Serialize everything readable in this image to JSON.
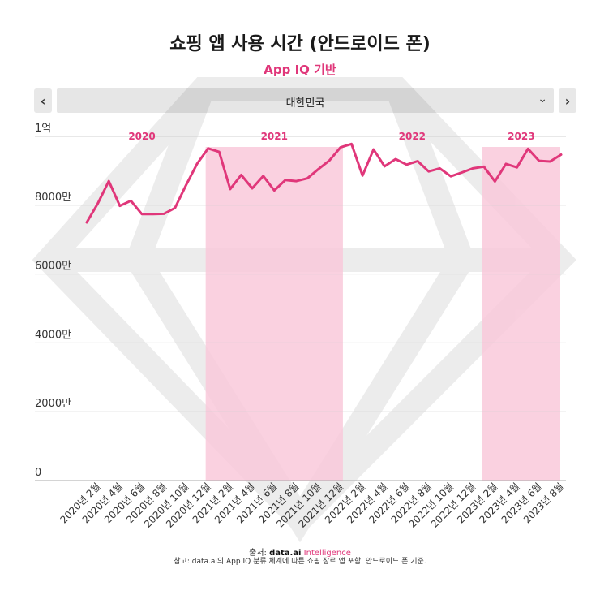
{
  "header": {
    "title": "쇼핑 앱 사용 시간 (안드로이드 폰)",
    "subtitle": "App IQ 기반"
  },
  "controls": {
    "prev_label": "‹",
    "next_label": "›",
    "country_selected": "대한민국",
    "chevron": "⌄"
  },
  "footer": {
    "source_prefix": "출처: ",
    "source_brand": "data.ai",
    "source_brand_suffix": " Intelligence",
    "note": "참고: data.ai의 App IQ 분류 체계에 따른 쇼핑 장르 앱 포함. 안드로이드 폰 기준."
  },
  "colors": {
    "line": "#e0377a",
    "band": "#f9c9da",
    "year_label": "#e0377a"
  },
  "chart_data": {
    "type": "line",
    "ylim": [
      0,
      100000000
    ],
    "y_ticks": [
      {
        "value": 0,
        "label": "0"
      },
      {
        "value": 20000000,
        "label": "2000만"
      },
      {
        "value": 40000000,
        "label": "4000만"
      },
      {
        "value": 60000000,
        "label": "6000만"
      },
      {
        "value": 80000000,
        "label": "8000만"
      },
      {
        "value": 100000000,
        "label": "1억"
      }
    ],
    "x_labels": [
      "2020년 2월",
      "2020년 4월",
      "2020년 6월",
      "2020년 8월",
      "2020년 10월",
      "2020년 12월",
      "2021년 2월",
      "2021년 4월",
      "2021년 6월",
      "2021년 8월",
      "2021년 10월",
      "2021년 12월",
      "2022년 2월",
      "2022년 4월",
      "2022년 6월",
      "2022년 8월",
      "2022년 10월",
      "2022년 12월",
      "2023년 2월",
      "2023년 4월",
      "2023년 6월",
      "2023년 8월"
    ],
    "year_bands": [
      {
        "label": "2020",
        "shaded": false
      },
      {
        "label": "2021",
        "shaded": true
      },
      {
        "label": "2022",
        "shaded": false
      },
      {
        "label": "2023",
        "shaded": true
      }
    ],
    "series": [
      {
        "values": [
          75000000,
          80500000,
          87000000,
          79800000,
          81300000,
          77400000,
          77400000,
          77500000,
          79200000,
          85800000,
          92000000,
          96500000,
          95500000,
          84700000,
          88800000,
          84900000,
          88500000,
          84300000,
          87300000,
          87000000,
          87800000,
          90500000,
          93000000,
          96800000,
          97800000,
          88600000,
          96200000,
          91300000,
          93400000,
          91800000,
          92800000,
          89800000,
          90700000,
          88400000,
          89500000,
          90700000,
          91200000,
          86900000,
          92000000,
          91000000,
          96400000,
          92900000,
          92700000,
          94700000
        ]
      }
    ]
  }
}
